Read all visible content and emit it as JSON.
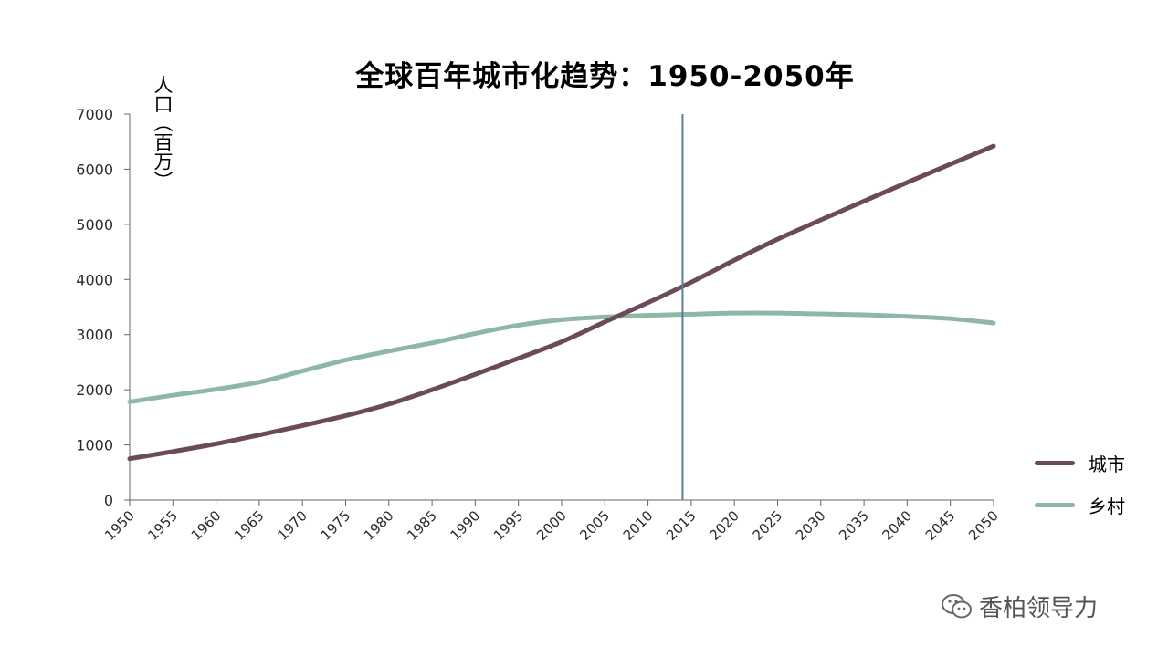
{
  "chart_data": {
    "type": "line",
    "title": "全球百年城市化趋势：1950-2050年",
    "ylabel": "人口（百万）",
    "xlabel": "",
    "ylim": [
      0,
      7000
    ],
    "yticks": [
      0,
      1000,
      2000,
      3000,
      4000,
      5000,
      6000,
      7000
    ],
    "x": [
      "1950",
      "1955",
      "1960",
      "1965",
      "1970",
      "1975",
      "1980",
      "1985",
      "1990",
      "1995",
      "2000",
      "2005",
      "2010",
      "2015",
      "2020",
      "2025",
      "2030",
      "2035",
      "2040",
      "2045",
      "2050"
    ],
    "series": [
      {
        "name": "城市",
        "color": "#6b4a5c",
        "values": [
          750,
          880,
          1020,
          1180,
          1350,
          1530,
          1740,
          2000,
          2280,
          2570,
          2870,
          3230,
          3580,
          3950,
          4350,
          4730,
          5080,
          5420,
          5760,
          6090,
          6420
        ]
      },
      {
        "name": "乡村",
        "color": "#8fb8a4",
        "values": [
          1780,
          1900,
          2010,
          2140,
          2340,
          2540,
          2700,
          2850,
          3020,
          3170,
          3270,
          3320,
          3350,
          3370,
          3390,
          3390,
          3375,
          3360,
          3330,
          3290,
          3210
        ]
      }
    ],
    "reference_line": {
      "x": 2014,
      "color": "#5a7f96"
    },
    "grid": false,
    "legend_position": "right"
  },
  "watermark": {
    "icon": "wechat-icon",
    "text": "香柏领导力"
  }
}
